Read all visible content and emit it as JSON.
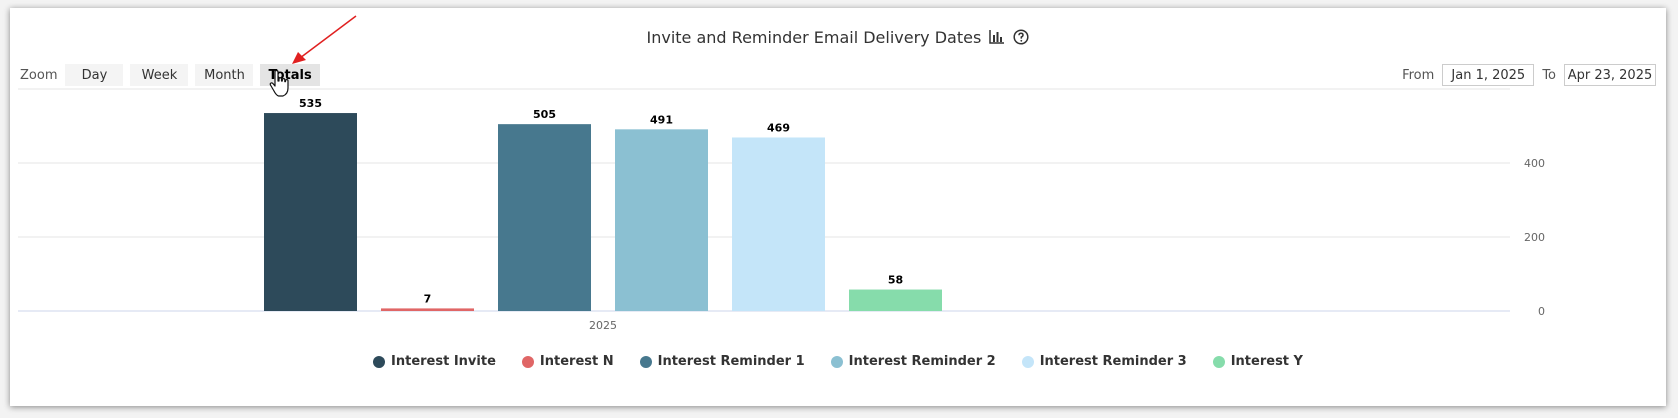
{
  "chart_data": {
    "type": "bar",
    "title": "Invite and Reminder Email Delivery Dates",
    "categories": [
      "2025"
    ],
    "series": [
      {
        "name": "Interest Invite",
        "values": [
          535
        ],
        "color": "#2d4a5a"
      },
      {
        "name": "Interest N",
        "values": [
          7
        ],
        "color": "#e06666"
      },
      {
        "name": "Interest Reminder 1",
        "values": [
          505
        ],
        "color": "#47788e"
      },
      {
        "name": "Interest Reminder 2",
        "values": [
          491
        ],
        "color": "#8bc0d2"
      },
      {
        "name": "Interest Reminder 3",
        "values": [
          469
        ],
        "color": "#c4e5f9"
      },
      {
        "name": "Interest Y",
        "values": [
          58
        ],
        "color": "#86dcab"
      }
    ],
    "yticks": [
      0,
      200,
      400
    ],
    "ylim": [
      0,
      600
    ],
    "yaxis_position": "right",
    "grid": true,
    "legend": "bottom-center",
    "data_labels": true
  },
  "toolbar": {
    "zoom_label": "Zoom",
    "zoom_buttons": [
      "Day",
      "Week",
      "Month",
      "Totals"
    ],
    "active_zoom": "Totals",
    "from_label": "From",
    "from_value": "Jan 1, 2025",
    "to_label": "To",
    "to_value": "Apr 23, 2025"
  },
  "icons": {
    "chart": "bar-chart-icon",
    "help": "help-circle-icon",
    "cursor": "hand-pointer-icon",
    "annotation": "red-arrow-icon"
  }
}
